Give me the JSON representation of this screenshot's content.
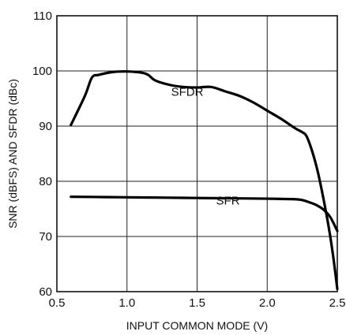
{
  "chart_data": {
    "type": "line",
    "xlabel": "INPUT COMMON MODE (V)",
    "ylabel": "SNR (dBFS) AND SFDR (dBc)",
    "xlim": [
      0.5,
      2.5
    ],
    "ylim": [
      60,
      110
    ],
    "x_ticks": [
      0.5,
      1.0,
      1.5,
      2.0,
      2.5
    ],
    "x_tick_labels": [
      "0.5",
      "1.0",
      "1.5",
      "2.0",
      "2.5"
    ],
    "y_ticks": [
      60,
      70,
      80,
      90,
      100,
      110
    ],
    "y_tick_labels": [
      "60",
      "70",
      "80",
      "90",
      "100",
      "110"
    ],
    "grid": true,
    "series": [
      {
        "name": "SFDR",
        "label_at": [
          1.43,
          95.5
        ],
        "points": [
          [
            0.6,
            90.2
          ],
          [
            0.7,
            95.5
          ],
          [
            0.75,
            98.8
          ],
          [
            0.8,
            99.3
          ],
          [
            0.9,
            99.8
          ],
          [
            1.0,
            99.9
          ],
          [
            1.1,
            99.7
          ],
          [
            1.15,
            99.3
          ],
          [
            1.2,
            98.3
          ],
          [
            1.3,
            97.5
          ],
          [
            1.4,
            97.1
          ],
          [
            1.5,
            97.0
          ],
          [
            1.6,
            97.1
          ],
          [
            1.7,
            96.3
          ],
          [
            1.8,
            95.5
          ],
          [
            1.9,
            94.3
          ],
          [
            2.0,
            92.8
          ],
          [
            2.1,
            91.3
          ],
          [
            2.2,
            89.6
          ],
          [
            2.25,
            88.9
          ],
          [
            2.28,
            88.2
          ],
          [
            2.32,
            85.5
          ],
          [
            2.36,
            81.8
          ],
          [
            2.4,
            77.0
          ],
          [
            2.44,
            71.5
          ],
          [
            2.47,
            66.5
          ],
          [
            2.5,
            60.5
          ]
        ]
      },
      {
        "name": "SFR",
        "label_at": [
          1.72,
          75.8
        ],
        "points": [
          [
            0.6,
            77.2
          ],
          [
            0.8,
            77.15
          ],
          [
            1.0,
            77.1
          ],
          [
            1.2,
            77.05
          ],
          [
            1.4,
            77.0
          ],
          [
            1.6,
            76.95
          ],
          [
            1.8,
            76.9
          ],
          [
            2.0,
            76.85
          ],
          [
            2.1,
            76.8
          ],
          [
            2.2,
            76.75
          ],
          [
            2.25,
            76.6
          ],
          [
            2.3,
            76.2
          ],
          [
            2.35,
            75.7
          ],
          [
            2.4,
            74.9
          ],
          [
            2.45,
            73.5
          ],
          [
            2.5,
            71.0
          ]
        ]
      }
    ]
  }
}
